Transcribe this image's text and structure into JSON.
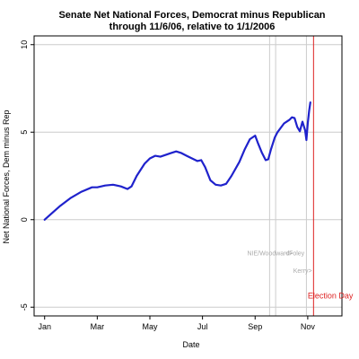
{
  "chart_data": {
    "type": "line",
    "title_line1": "Senate Net National Forces, Democrat minus Republican",
    "title_line2": "through 11/6/06, relative to 1/1/2006",
    "xlabel": "Date",
    "ylabel": "Net National Forces, Dem minus Rep",
    "x_unit": "month of 2006 (1 = Jan 1)",
    "xlim": [
      0.6,
      12.3
    ],
    "ylim": [
      -5.5,
      10.5
    ],
    "x_ticks": [
      {
        "value": 1,
        "label": "Jan"
      },
      {
        "value": 3,
        "label": "Mar"
      },
      {
        "value": 5,
        "label": "May"
      },
      {
        "value": 7,
        "label": "Jul"
      },
      {
        "value": 9,
        "label": "Sep"
      },
      {
        "value": 11,
        "label": "Nov"
      }
    ],
    "y_ticks": [
      {
        "value": -5,
        "label": "-5"
      },
      {
        "value": 0,
        "label": "0"
      },
      {
        "value": 5,
        "label": "5"
      },
      {
        "value": 10,
        "label": "10"
      }
    ],
    "grid": true,
    "series": [
      {
        "color": "#1f22cc",
        "x": [
          1.0,
          1.3,
          1.6,
          2.0,
          2.4,
          2.8,
          3.0,
          3.3,
          3.6,
          3.9,
          4.15,
          4.3,
          4.5,
          4.8,
          5.0,
          5.2,
          5.4,
          5.6,
          5.8,
          6.0,
          6.2,
          6.4,
          6.6,
          6.8,
          6.95,
          7.1,
          7.3,
          7.5,
          7.7,
          7.9,
          8.1,
          8.4,
          8.6,
          8.8,
          9.0,
          9.1,
          9.25,
          9.4,
          9.5,
          9.6,
          9.75,
          9.85,
          10.0,
          10.1,
          10.2,
          10.3,
          10.4,
          10.5,
          10.6,
          10.7,
          10.8,
          10.9,
          10.95,
          11.0,
          11.05,
          11.1
        ],
        "y": [
          0.0,
          0.4,
          0.8,
          1.25,
          1.6,
          1.85,
          1.85,
          1.95,
          2.0,
          1.9,
          1.75,
          1.9,
          2.5,
          3.2,
          3.5,
          3.65,
          3.6,
          3.7,
          3.8,
          3.9,
          3.8,
          3.65,
          3.5,
          3.35,
          3.4,
          3.0,
          2.25,
          2.0,
          1.95,
          2.05,
          2.5,
          3.3,
          4.0,
          4.6,
          4.8,
          4.4,
          3.85,
          3.4,
          3.45,
          4.0,
          4.7,
          5.0,
          5.3,
          5.5,
          5.6,
          5.7,
          5.85,
          5.8,
          5.3,
          5.05,
          5.6,
          5.1,
          4.55,
          5.5,
          6.2,
          6.7
        ]
      }
    ],
    "vlines": [
      {
        "x": 9.55,
        "color": "#cccccc"
      },
      {
        "x": 9.78,
        "color": "#cccccc"
      },
      {
        "x": 10.95,
        "color": "#cccccc"
      },
      {
        "x": 11.22,
        "color": "#dd2222"
      }
    ],
    "annotations": [
      {
        "text": "NIE/Woodward>",
        "x": 8.7,
        "y": -2.05,
        "color": "#aaaaaa",
        "kind": "gray"
      },
      {
        "text": "<Foley",
        "x": 10.15,
        "y": -2.05,
        "color": "#aaaaaa",
        "kind": "gray"
      },
      {
        "text": "Kerry>",
        "x": 10.45,
        "y": -3.05,
        "color": "#aaaaaa",
        "kind": "gray"
      },
      {
        "text": "Election Day",
        "x": 11.0,
        "y": -4.5,
        "color": "#dd2222",
        "kind": "red"
      }
    ]
  }
}
